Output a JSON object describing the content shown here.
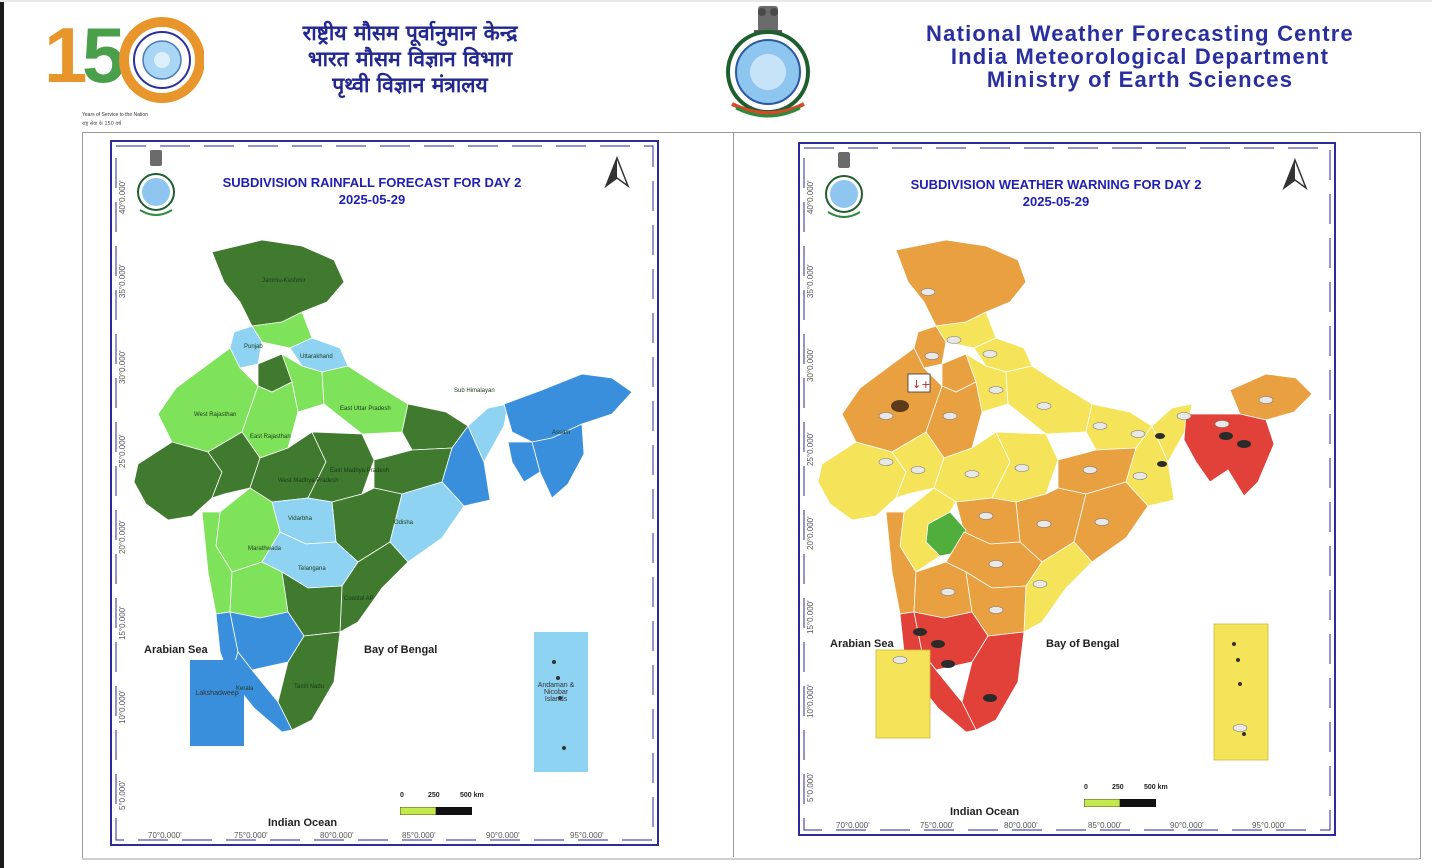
{
  "header": {
    "logo_number": "150",
    "logo_caption": "Years of Service to the Nation",
    "hindi_lines": [
      "राष्ट्रीय मौसम पूर्वानुमान केन्द्र",
      "भारत मौसम विज्ञान विभाग",
      "पृथ्वी विज्ञान मंत्रालय"
    ],
    "english_lines": [
      "National Weather Forecasting Centre",
      "India Meteorological Department",
      "Ministry of Earth Sciences"
    ]
  },
  "left_map": {
    "title_line1": "SUBDIVISION RAINFALL FORECAST FOR DAY 2",
    "title_line2": "2025-05-29",
    "arabian_sea": "Arabian Sea",
    "bay_of_bengal": "Bay of Bengal",
    "indian_ocean": "Indian Ocean",
    "scale_labels": [
      "0",
      "250",
      "500 km"
    ],
    "lon_ticks": [
      "70°0.000'",
      "75°0.000'",
      "80°0.000'",
      "85°0.000'",
      "90°0.000'",
      "95°0.000'"
    ],
    "lat_ticks": [
      "40°0.000'",
      "35°0.000'",
      "30°0.000'",
      "25°0.000'",
      "20°0.000'",
      "15°0.000'",
      "10°0.000'",
      "5°0.000'"
    ],
    "inset_lakshadweep": "Lakshadweep",
    "inset_andaman": "Andaman & Nicobar Islands",
    "colors": {
      "dark_green": "#3f7a2e",
      "light_green": "#7ee25a",
      "sky_blue": "#8fd3f3",
      "blue": "#3a8fdc"
    }
  },
  "right_map": {
    "title_line1": "SUBDIVISION WEATHER WARNING FOR DAY 2",
    "title_line2": "2025-05-29",
    "arabian_sea": "Arabian Sea",
    "bay_of_bengal": "Bay of Bengal",
    "indian_ocean": "Indian Ocean",
    "scale_labels": [
      "0",
      "250",
      "500 km"
    ],
    "lon_ticks": [
      "70°0.000'",
      "75°0.000'",
      "80°0.000'",
      "85°0.000'",
      "90°0.000'",
      "95°0.000'"
    ],
    "lat_ticks": [
      "40°0.000'",
      "35°0.000'",
      "30°0.000'",
      "25°0.000'",
      "20°0.000'",
      "15°0.000'",
      "10°0.000'",
      "5°0.000'"
    ],
    "colors": {
      "orange": "#e9a040",
      "yellow": "#f5e35a",
      "red": "#e2413a",
      "green": "#4fae3c"
    }
  }
}
